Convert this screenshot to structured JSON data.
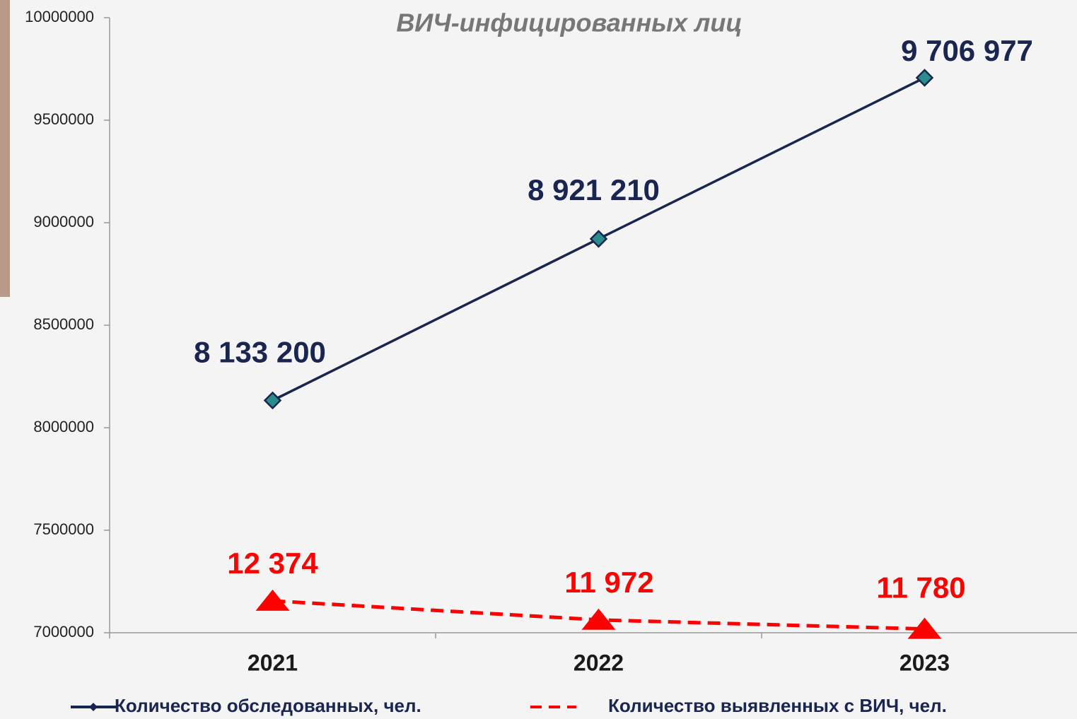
{
  "chart_data": {
    "type": "line",
    "title": "ВИЧ-инфицированных лиц",
    "categories": [
      "2021",
      "2022",
      "2023"
    ],
    "series": [
      {
        "name": "Количество обследованных, чел.",
        "color": "#1a2550",
        "marker": "diamond",
        "line_style": "solid",
        "values": [
          8133200,
          8921210,
          9706977
        ],
        "value_labels": [
          "8 133 200",
          "8 921 210",
          "9 706 977"
        ]
      },
      {
        "name": "Количество выявленных с ВИЧ, чел.",
        "color": "#ff0000",
        "marker": "triangle",
        "line_style": "dashed",
        "axis": "y2",
        "values": [
          12374,
          11972,
          11780
        ],
        "value_labels": [
          "12 374",
          "11 972",
          "11 780"
        ]
      }
    ],
    "ylim": [
      7000000,
      10000000
    ],
    "yticks": [
      7000000,
      7500000,
      8000000,
      8500000,
      9000000,
      9500000,
      10000000
    ],
    "y2lim": [
      11700,
      24700
    ]
  }
}
